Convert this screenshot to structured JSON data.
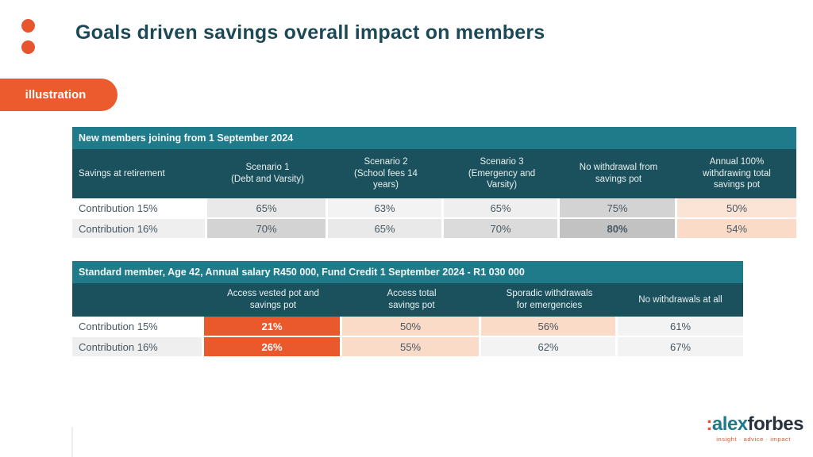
{
  "slide": {
    "title": "Goals driven savings overall impact on members",
    "badge_label": "illustration"
  },
  "colors": {
    "brand_orange": "#e8542d",
    "banner_teal": "#1f7b8a",
    "header_dark_teal": "#1a515d",
    "title_text": "#1d4956",
    "highlight_peach": "#fadbc8",
    "highlight_orange_cell": "#e9592b"
  },
  "table1": {
    "banner": "New members joining from 1 September 2024",
    "col_headers": [
      "Savings at retirement",
      "Scenario 1\n(Debt and Varsity)",
      "Scenario 2\n(School fees 14\nyears)",
      "Scenario 3\n(Emergency and\nVarsity)",
      "No withdrawal from\nsavings pot",
      "Annual 100%\nwithdrawing total\nsavings pot"
    ],
    "rows": [
      {
        "label": "Contribution 15%",
        "values": [
          "65%",
          "63%",
          "65%",
          "75%",
          "50%"
        ]
      },
      {
        "label": "Contribution 16%",
        "values": [
          "70%",
          "65%",
          "70%",
          "80%",
          "54%"
        ]
      }
    ]
  },
  "table2": {
    "banner": "Standard member,  Age 42, Annual salary R450 000, Fund Credit 1 September 2024 - R1 030 000",
    "col_headers": [
      "",
      "Access vested pot and\nsavings pot",
      "Access total\nsavings pot",
      "Sporadic withdrawals\nfor emergencies",
      "No withdrawals at all"
    ],
    "rows": [
      {
        "label": "Contribution 15%",
        "values": [
          "21%",
          "50%",
          "56%",
          "61%"
        ]
      },
      {
        "label": "Contribution 16%",
        "values": [
          "26%",
          "55%",
          "62%",
          "67%"
        ]
      }
    ]
  },
  "logo": {
    "colon": ":",
    "name_teal": "alex",
    "name_dark": "forbes",
    "tagline": "insight · advice · impact"
  }
}
